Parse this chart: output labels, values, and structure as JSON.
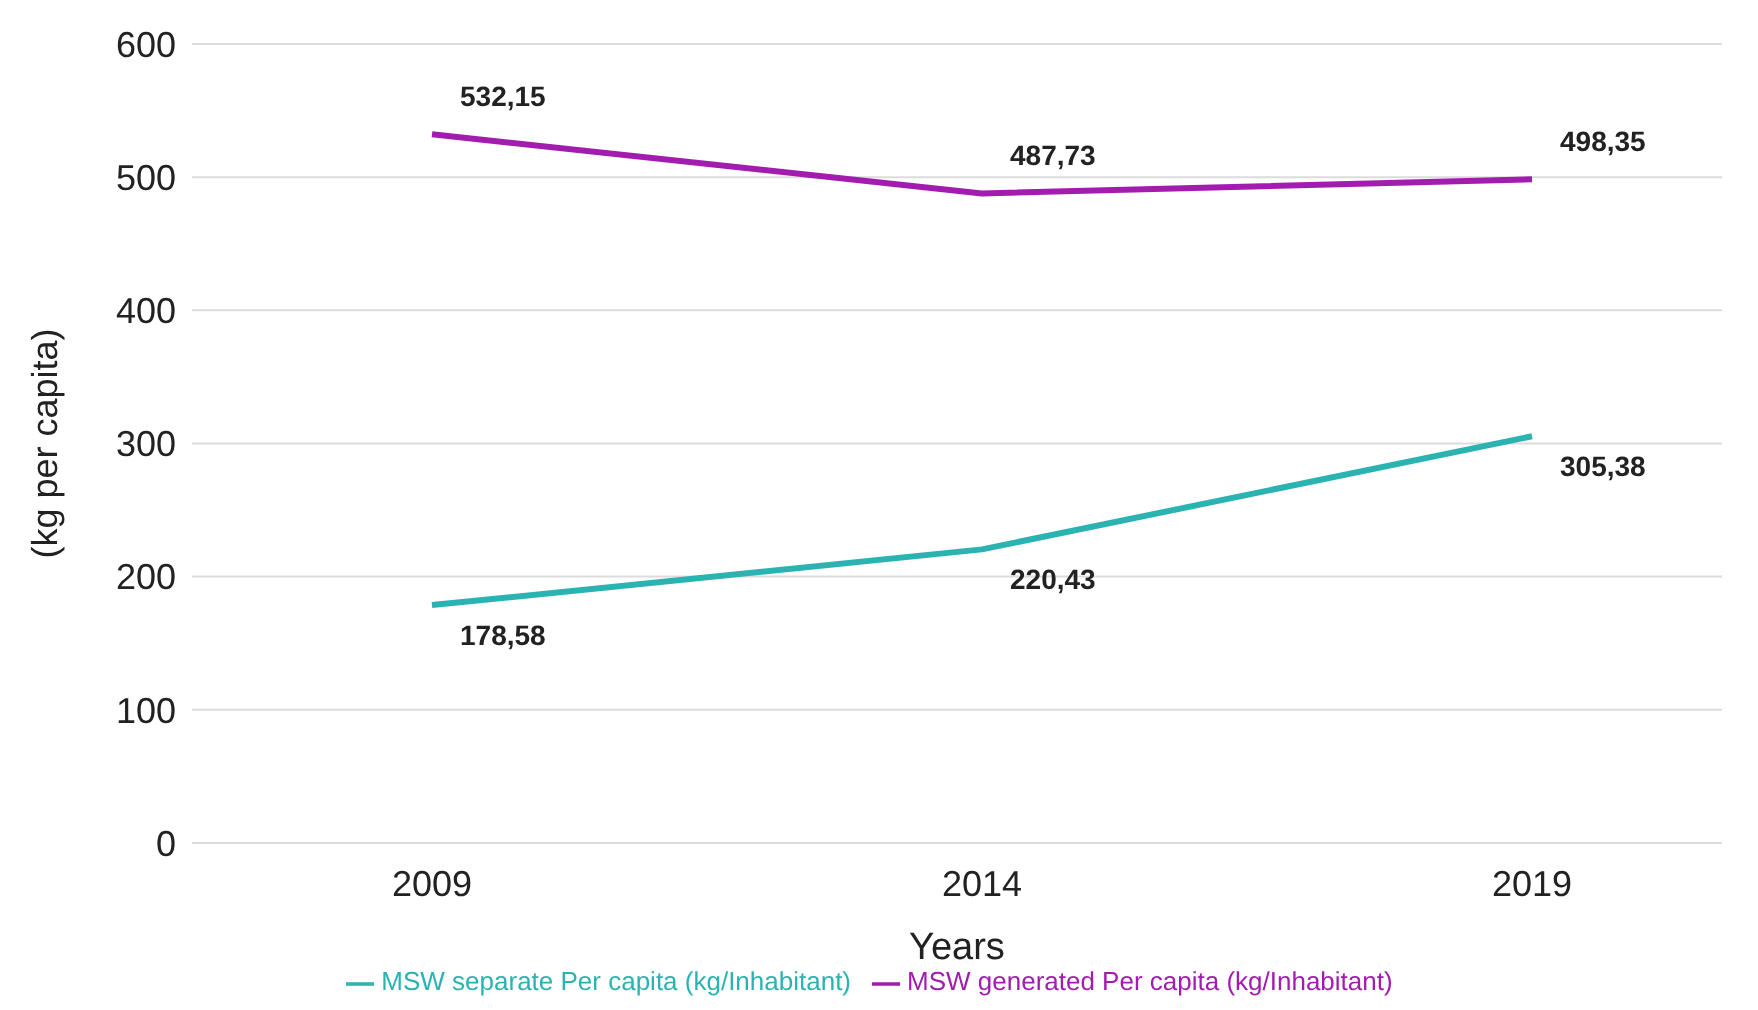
{
  "chart_data": {
    "type": "line",
    "xlabel": "Years",
    "ylabel": "(kg per capita)",
    "categories": [
      "2009",
      "2014",
      "2019"
    ],
    "series": [
      {
        "name": "MSW separate Per capita (kg/Inhabitant)",
        "color": "#2ab3b1",
        "values": [
          178.58,
          220.43,
          305.38
        ],
        "value_labels": [
          "178,58",
          "220,43",
          "305,38"
        ]
      },
      {
        "name": "MSW generated Per capita (kg/Inhabitant)",
        "color": "#a21caf",
        "values": [
          532.15,
          487.73,
          498.35
        ],
        "value_labels": [
          "532,15",
          "487,73",
          "498,35"
        ]
      }
    ],
    "ylim": [
      0,
      600
    ],
    "yticks": [
      0,
      100,
      200,
      300,
      400,
      500,
      600
    ],
    "grid": "y",
    "legend": "bottom",
    "marker": "none",
    "line_style": "solid"
  }
}
